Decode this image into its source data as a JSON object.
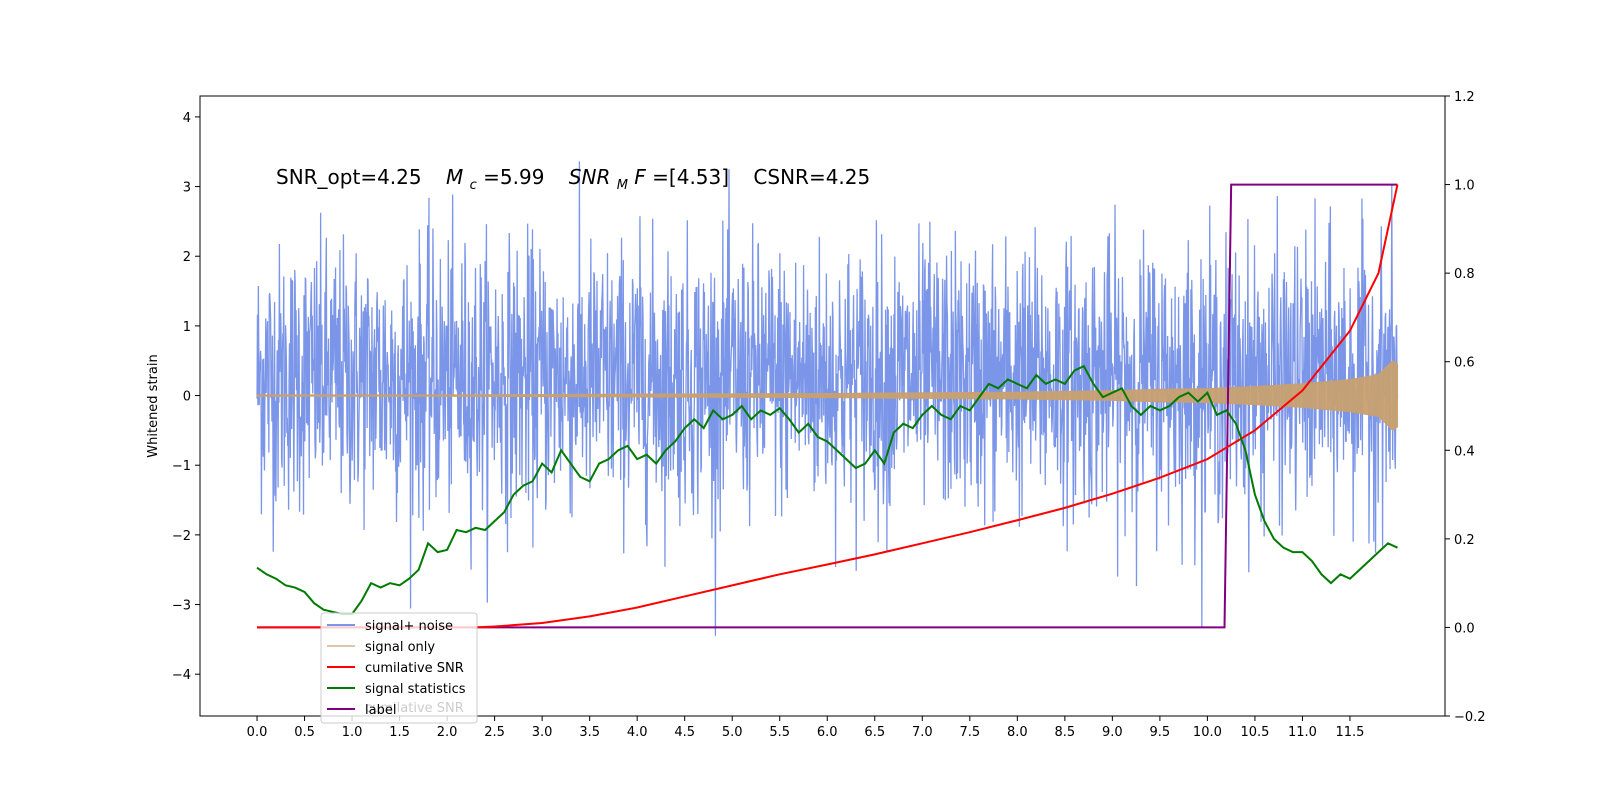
{
  "chart_data": {
    "type": "line",
    "title_parts": {
      "snr_opt": "SNR_opt=4.25",
      "mc_symbol": "M",
      "mc_sub": "c",
      "mc_value": "=5.99",
      "snrmf_symbol": "SNR",
      "snrmf_sub": "M",
      "snrmf_rest": "F",
      "snrmf_value": "=[4.53]",
      "csnr": "CSNR=4.25"
    },
    "ylabel": "Whitened strain",
    "xlim": [
      -0.6,
      12.5
    ],
    "ylim": [
      -4.6,
      4.3
    ],
    "y2lim": [
      -0.2,
      1.2
    ],
    "x_ticks": [
      "0.0",
      "0.5",
      "1.0",
      "1.5",
      "2.0",
      "2.5",
      "3.0",
      "3.5",
      "4.0",
      "4.5",
      "5.0",
      "5.5",
      "6.0",
      "6.5",
      "7.0",
      "7.5",
      "8.0",
      "8.5",
      "9.0",
      "9.5",
      "10.0",
      "10.5",
      "11.0",
      "11.5"
    ],
    "y_ticks": [
      "4",
      "3",
      "2",
      "1",
      "0",
      "−1",
      "−2",
      "−3",
      "−4"
    ],
    "y2_ticks": [
      "1.2",
      "1.0",
      "0.8",
      "0.6",
      "0.4",
      "0.2",
      "0.0",
      "−0.2"
    ],
    "x_range_data": [
      0.0,
      12.0
    ],
    "colors": {
      "signal_noise": "#7b96e8",
      "signal_only": "#c8a070",
      "cumulative_snr": "#ff0000",
      "signal_statistics": "#007a00",
      "label": "#800080"
    },
    "series": [
      {
        "name": "signal+ noise",
        "axis": "left",
        "description_range": [
          -3.45,
          3.9
        ],
        "typical_band": [
          -1.6,
          2.1
        ]
      },
      {
        "name": "signal only",
        "axis": "left",
        "envelope_x": [
          0,
          2,
          4,
          6,
          8,
          9,
          9.5,
          10,
          10.5,
          11,
          11.5,
          11.8,
          11.95,
          12.0
        ],
        "envelope_y": [
          0.01,
          0.01,
          0.02,
          0.03,
          0.05,
          0.07,
          0.09,
          0.1,
          0.13,
          0.17,
          0.23,
          0.3,
          0.5,
          0.45
        ]
      },
      {
        "name": "cumilative SNR",
        "axis": "right",
        "x": [
          0,
          2.3,
          2.5,
          3,
          3.5,
          4,
          4.5,
          5,
          5.5,
          6,
          6.5,
          7,
          7.5,
          8,
          8.5,
          9,
          9.5,
          10,
          10.5,
          11,
          11.5,
          11.8,
          11.95,
          12.0
        ],
        "y": [
          0,
          0,
          0.002,
          0.01,
          0.025,
          0.045,
          0.07,
          0.095,
          0.12,
          0.142,
          0.165,
          0.19,
          0.215,
          0.242,
          0.27,
          0.302,
          0.338,
          0.38,
          0.445,
          0.535,
          0.67,
          0.8,
          0.95,
          1.0
        ]
      },
      {
        "name": "signal statistics",
        "axis": "right",
        "x": [
          0,
          0.1,
          0.2,
          0.3,
          0.4,
          0.5,
          0.6,
          0.7,
          0.8,
          0.9,
          1.0,
          1.1,
          1.2,
          1.3,
          1.4,
          1.5,
          1.6,
          1.7,
          1.8,
          1.9,
          2.0,
          2.1,
          2.2,
          2.3,
          2.4,
          2.5,
          2.6,
          2.7,
          2.8,
          2.9,
          3.0,
          3.1,
          3.2,
          3.3,
          3.4,
          3.5,
          3.6,
          3.7,
          3.8,
          3.9,
          4.0,
          4.1,
          4.2,
          4.3,
          4.4,
          4.5,
          4.6,
          4.7,
          4.8,
          4.9,
          5.0,
          5.1,
          5.2,
          5.3,
          5.4,
          5.5,
          5.6,
          5.7,
          5.8,
          5.9,
          6.0,
          6.1,
          6.2,
          6.3,
          6.4,
          6.5,
          6.6,
          6.7,
          6.8,
          6.9,
          7.0,
          7.1,
          7.2,
          7.3,
          7.4,
          7.5,
          7.6,
          7.7,
          7.8,
          7.9,
          8.0,
          8.1,
          8.2,
          8.3,
          8.4,
          8.5,
          8.6,
          8.7,
          8.8,
          8.9,
          9.0,
          9.1,
          9.2,
          9.3,
          9.4,
          9.5,
          9.6,
          9.7,
          9.8,
          9.9,
          10.0,
          10.1,
          10.2,
          10.3,
          10.4,
          10.5,
          10.6,
          10.7,
          10.8,
          10.9,
          11.0,
          11.1,
          11.2,
          11.3,
          11.4,
          11.5,
          11.6,
          11.7,
          11.8,
          11.9,
          12.0
        ],
        "y": [
          0.135,
          0.12,
          0.11,
          0.095,
          0.09,
          0.08,
          0.055,
          0.04,
          0.035,
          0.03,
          0.03,
          0.06,
          0.1,
          0.09,
          0.1,
          0.095,
          0.11,
          0.13,
          0.19,
          0.17,
          0.175,
          0.22,
          0.215,
          0.225,
          0.22,
          0.24,
          0.26,
          0.3,
          0.32,
          0.33,
          0.37,
          0.35,
          0.4,
          0.37,
          0.34,
          0.33,
          0.37,
          0.38,
          0.4,
          0.41,
          0.38,
          0.39,
          0.37,
          0.4,
          0.42,
          0.45,
          0.47,
          0.45,
          0.49,
          0.47,
          0.48,
          0.5,
          0.47,
          0.49,
          0.48,
          0.495,
          0.47,
          0.44,
          0.46,
          0.43,
          0.42,
          0.4,
          0.38,
          0.36,
          0.37,
          0.4,
          0.37,
          0.44,
          0.46,
          0.45,
          0.48,
          0.5,
          0.48,
          0.47,
          0.5,
          0.49,
          0.52,
          0.55,
          0.54,
          0.56,
          0.55,
          0.54,
          0.57,
          0.55,
          0.56,
          0.55,
          0.58,
          0.59,
          0.55,
          0.52,
          0.53,
          0.54,
          0.5,
          0.48,
          0.5,
          0.49,
          0.5,
          0.52,
          0.53,
          0.51,
          0.53,
          0.48,
          0.49,
          0.46,
          0.4,
          0.3,
          0.24,
          0.2,
          0.18,
          0.17,
          0.17,
          0.15,
          0.12,
          0.1,
          0.12,
          0.11,
          0.13,
          0.15,
          0.17,
          0.19,
          0.18
        ],
        "y_fixed_note": ""
      },
      {
        "name": "label",
        "axis": "right",
        "x": [
          0,
          10.18,
          10.25,
          12.0
        ],
        "y": [
          0,
          0,
          1,
          1
        ]
      }
    ],
    "legend": {
      "position": "lower-left",
      "entries": [
        "signal+ noise",
        "signal only",
        "cumilative SNR",
        "signal statistics",
        "label"
      ],
      "ghost_text": "cumilative SNR"
    },
    "grid": false
  }
}
